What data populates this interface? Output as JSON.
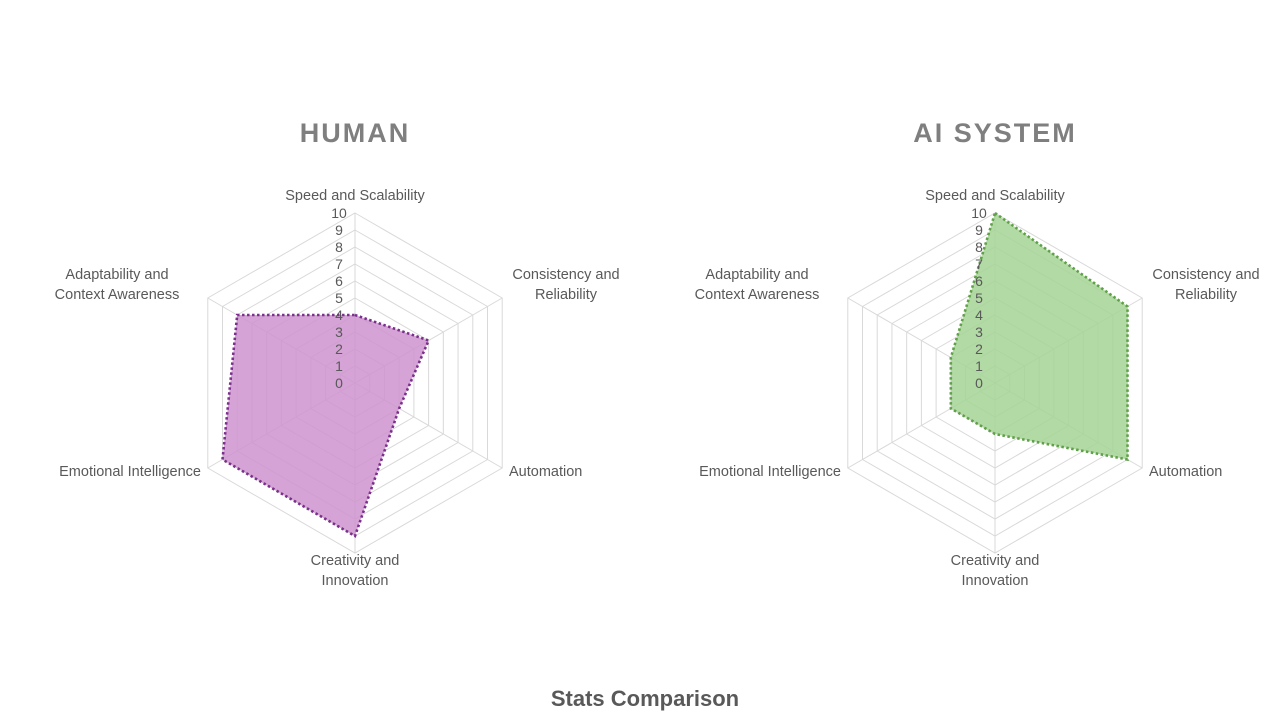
{
  "footer": {
    "title": "Stats Comparison"
  },
  "colors": {
    "human_fill": "#CE93CE",
    "human_line": "#7B2F8C",
    "ai_fill": "#A4D494",
    "ai_line": "#5FA048",
    "grid": "#D9D9D9",
    "text": "#595959"
  },
  "chart_data": [
    {
      "type": "radar",
      "title": "HUMAN",
      "categories": [
        "Speed and Scalability",
        "Consistency and Reliability",
        "Automation",
        "Creativity and Innovation",
        "Emotional Intelligence",
        "Adaptability and Context Awareness"
      ],
      "series": [
        {
          "values": [
            4,
            5,
            3,
            9,
            9,
            8
          ]
        }
      ],
      "r_ticks": [
        "0",
        "1",
        "2",
        "3",
        "4",
        "5",
        "6",
        "7",
        "8",
        "9",
        "10"
      ],
      "rlim": [
        0,
        10
      ],
      "grid": true
    },
    {
      "type": "radar",
      "title": "AI SYSTEM",
      "categories": [
        "Speed and Scalability",
        "Consistency and Reliability",
        "Automation",
        "Creativity and Innovation",
        "Emotional Intelligence",
        "Adaptability and Context Awareness"
      ],
      "series": [
        {
          "values": [
            10,
            9,
            9,
            3,
            3,
            3
          ]
        }
      ],
      "r_ticks": [
        "0",
        "1",
        "2",
        "3",
        "4",
        "5",
        "6",
        "7",
        "8",
        "9",
        "10"
      ],
      "rlim": [
        0,
        10
      ],
      "grid": true
    }
  ]
}
